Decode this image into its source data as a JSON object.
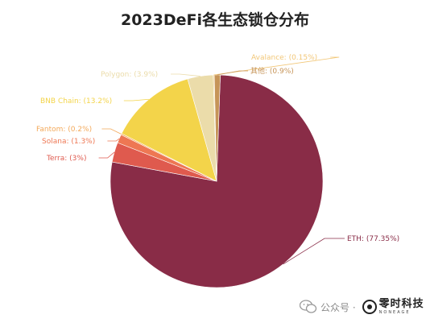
{
  "chart_data": {
    "type": "pie",
    "title": "2023DeFi各生态锁仓分布",
    "slices": [
      {
        "label": "ETH: (77.35%)",
        "value": 77.35,
        "color": "#892c47"
      },
      {
        "label": "Terra: (3%)",
        "value": 3,
        "color": "#df5a4e"
      },
      {
        "label": "Solana: (1.3%)",
        "value": 1.3,
        "color": "#ee7753"
      },
      {
        "label": "Fantom: (0.2%)",
        "value": 0.2,
        "color": "#f3a95a"
      },
      {
        "label": "BNB Chain: (13.2%)",
        "value": 13.2,
        "color": "#f3d44a"
      },
      {
        "label": "Polygon: (3.9%)",
        "value": 3.9,
        "color": "#ebdcaa"
      },
      {
        "label": "Avalance: (0.15%)",
        "value": 0.15,
        "color": "#f2c778"
      },
      {
        "label": "其他: (0.9%)",
        "value": 0.9,
        "color": "#c69458"
      }
    ]
  },
  "watermark": {
    "public_text": "公众号 ·",
    "brand_name": "零时科技",
    "brand_sub": "NONEAGE"
  }
}
